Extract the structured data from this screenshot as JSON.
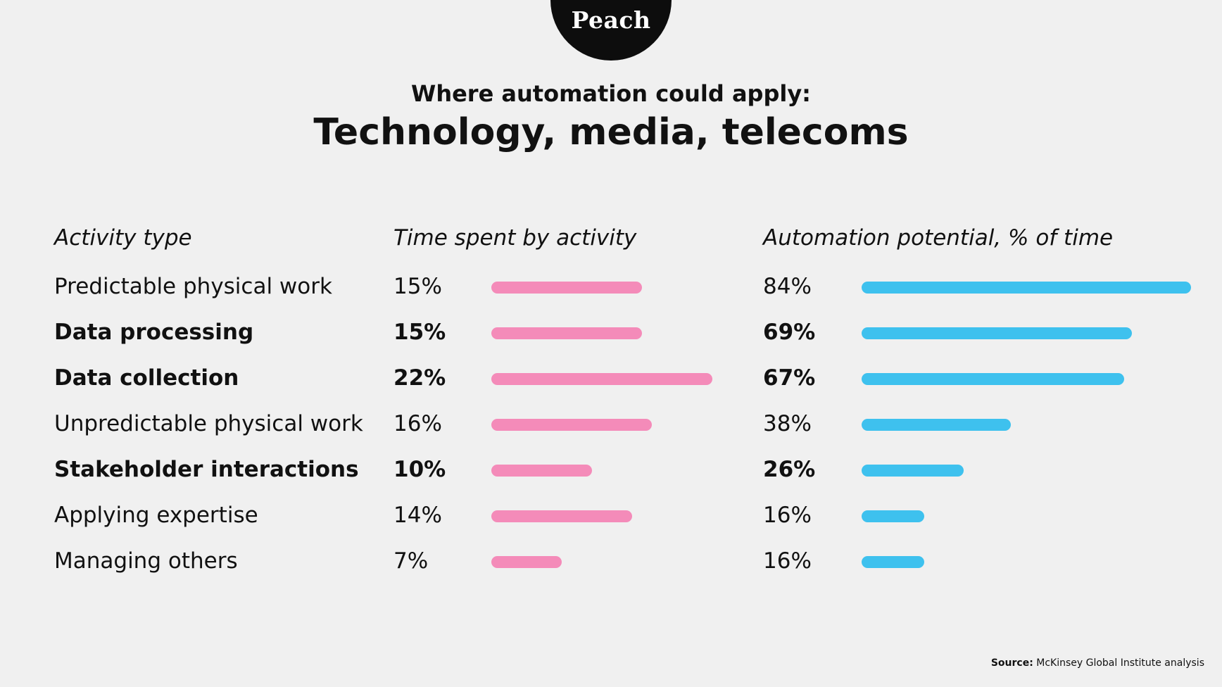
{
  "logo": {
    "text": "Peach"
  },
  "header": {
    "subtitle": "Where automation could apply:",
    "title": "Technology, media, telecoms"
  },
  "colors": {
    "time_bar": "#f48bb9",
    "automation_bar": "#3ec1ee",
    "background": "#f0f0f0",
    "logo_circle": "#0d0d0d"
  },
  "chart_data": {
    "type": "bar",
    "column_headers": {
      "category": "Activity type",
      "time": "Time spent by activity",
      "automation": "Automation potential, % of time"
    },
    "categories": [
      "Predictable physical work",
      "Data processing",
      "Data collection",
      "Unpredictable physical work",
      "Stakeholder interactions",
      "Applying expertise",
      "Managing others"
    ],
    "bold": [
      false,
      true,
      true,
      false,
      true,
      false,
      false
    ],
    "series": [
      {
        "name": "Time spent by activity",
        "values": [
          15,
          15,
          22,
          16,
          10,
          14,
          7
        ],
        "labels": [
          "15%",
          "15%",
          "22%",
          "16%",
          "10%",
          "14%",
          "7%"
        ],
        "color": "#f48bb9",
        "max": 22
      },
      {
        "name": "Automation potential, % of time",
        "values": [
          84,
          69,
          67,
          38,
          26,
          16,
          16
        ],
        "labels": [
          "84%",
          "69%",
          "67%",
          "38%",
          "26%",
          "16%",
          "16%"
        ],
        "color": "#3ec1ee",
        "max": 84
      }
    ]
  },
  "source": {
    "label": "Source:",
    "text": "McKinsey Global Institute analysis"
  }
}
